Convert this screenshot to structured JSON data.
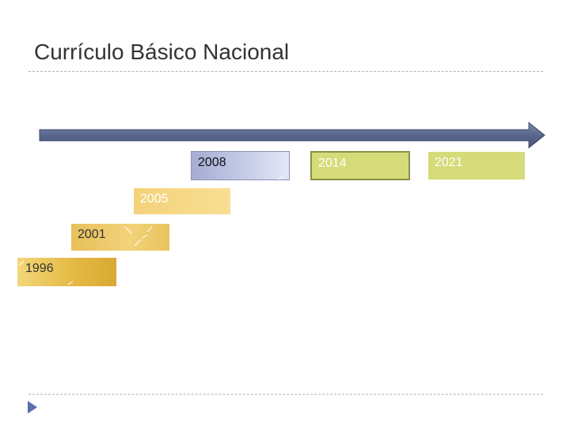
{
  "title": "Currículo Básico Nacional",
  "years": {
    "y1996": "1996",
    "y2001": "2001",
    "y2005": "2005",
    "y2008": "2008",
    "y2014": "2014",
    "y2021": "2021"
  },
  "colors": {
    "timeline_arrow": "#5a668c",
    "gold": "#e8c05a",
    "lavender": "#b8bfe0",
    "olive": "#d4db78",
    "bullet": "#5a6ea8"
  }
}
